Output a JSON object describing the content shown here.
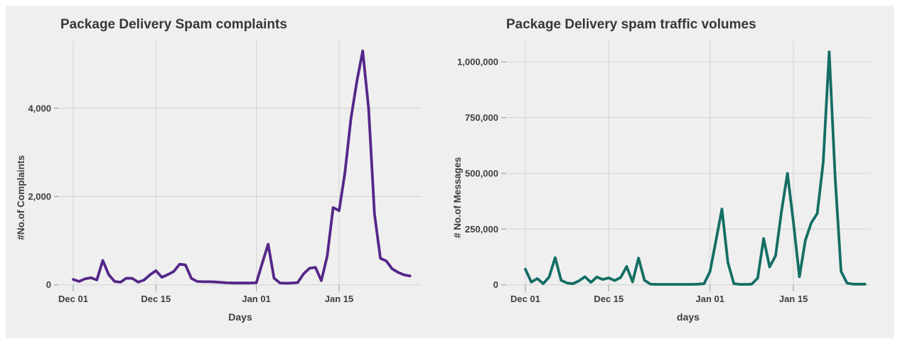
{
  "page": {
    "background_color": "#ffffff",
    "canvas_color": "#efefef",
    "grid_color": "#d2d2d2"
  },
  "chart_data": [
    {
      "type": "line",
      "title": "Package Delivery Spam complaints",
      "xlabel": "Days",
      "ylabel": "#No.of Complaints",
      "series_name": "complaints",
      "line_color": "#542788",
      "grid": true,
      "legend": "none",
      "ylim": [
        0,
        5450
      ],
      "x_ticks": [
        {
          "label": "Dec 01",
          "day": 0
        },
        {
          "label": "Dec 15",
          "day": 14
        },
        {
          "label": "Jan 01",
          "day": 31
        },
        {
          "label": "Jan 15",
          "day": 45
        }
      ],
      "y_ticks": [
        {
          "label": "0",
          "value": 0
        },
        {
          "label": "2,000",
          "value": 2000
        },
        {
          "label": "4,000",
          "value": 4000
        }
      ],
      "x_dates": [
        "Dec 01",
        "Dec 02",
        "Dec 03",
        "Dec 04",
        "Dec 05",
        "Dec 06",
        "Dec 07",
        "Dec 08",
        "Dec 09",
        "Dec 10",
        "Dec 11",
        "Dec 12",
        "Dec 13",
        "Dec 14",
        "Dec 15",
        "Dec 16",
        "Dec 17",
        "Dec 18",
        "Dec 19",
        "Dec 20",
        "Dec 21",
        "Dec 22",
        "Dec 23",
        "Dec 24",
        "Dec 25",
        "Dec 26",
        "Dec 27",
        "Dec 28",
        "Dec 29",
        "Dec 30",
        "Dec 31",
        "Jan 01",
        "Jan 02",
        "Jan 03",
        "Jan 04",
        "Jan 05",
        "Jan 06",
        "Jan 07",
        "Jan 08",
        "Jan 09",
        "Jan 10",
        "Jan 11",
        "Jan 12",
        "Jan 13",
        "Jan 14",
        "Jan 15",
        "Jan 16",
        "Jan 17",
        "Jan 18",
        "Jan 19",
        "Jan 20",
        "Jan 21",
        "Jan 22",
        "Jan 23",
        "Jan 24",
        "Jan 25",
        "Jan 26",
        "Jan 27"
      ],
      "values": [
        120,
        75,
        135,
        160,
        110,
        550,
        230,
        75,
        60,
        150,
        145,
        60,
        110,
        225,
        320,
        170,
        230,
        300,
        465,
        450,
        145,
        75,
        70,
        70,
        65,
        55,
        45,
        40,
        40,
        40,
        40,
        45,
        490,
        920,
        150,
        40,
        35,
        40,
        50,
        250,
        375,
        395,
        95,
        650,
        1750,
        1680,
        2550,
        3760,
        4600,
        5300,
        4000,
        1600,
        600,
        540,
        360,
        280,
        225,
        200
      ]
    },
    {
      "type": "line",
      "title": "Package Delivery spam traffic volumes",
      "xlabel": "days",
      "ylabel": "# No.of Messages",
      "series_name": "messages",
      "line_color": "#146e64",
      "grid": true,
      "legend": "none",
      "ylim": [
        0,
        1060000
      ],
      "x_ticks": [
        {
          "label": "Dec 01",
          "day": 0
        },
        {
          "label": "Dec 15",
          "day": 14
        },
        {
          "label": "Jan 01",
          "day": 31
        },
        {
          "label": "Jan 15",
          "day": 45
        }
      ],
      "y_ticks": [
        {
          "label": "0",
          "value": 0
        },
        {
          "label": "250,000",
          "value": 250000
        },
        {
          "label": "500,000",
          "value": 500000
        },
        {
          "label": "750,000",
          "value": 750000
        },
        {
          "label": "1,000,000",
          "value": 1000000
        }
      ],
      "x_dates": [
        "Dec 01",
        "Dec 02",
        "Dec 03",
        "Dec 04",
        "Dec 05",
        "Dec 06",
        "Dec 07",
        "Dec 08",
        "Dec 09",
        "Dec 10",
        "Dec 11",
        "Dec 12",
        "Dec 13",
        "Dec 14",
        "Dec 15",
        "Dec 16",
        "Dec 17",
        "Dec 18",
        "Dec 19",
        "Dec 20",
        "Dec 21",
        "Dec 22",
        "Dec 23",
        "Dec 24",
        "Dec 25",
        "Dec 26",
        "Dec 27",
        "Dec 28",
        "Dec 29",
        "Dec 30",
        "Dec 31",
        "Jan 01",
        "Jan 02",
        "Jan 03",
        "Jan 04",
        "Jan 05",
        "Jan 06",
        "Jan 07",
        "Jan 08",
        "Jan 09",
        "Jan 10",
        "Jan 11",
        "Jan 12",
        "Jan 13",
        "Jan 14",
        "Jan 15",
        "Jan 16",
        "Jan 17",
        "Jan 18",
        "Jan 19",
        "Jan 20",
        "Jan 21",
        "Jan 22",
        "Jan 23",
        "Jan 24",
        "Jan 25",
        "Jan 26",
        "Jan 27"
      ],
      "values": [
        70000,
        12000,
        28000,
        5000,
        35000,
        122000,
        20000,
        8000,
        5000,
        18000,
        36000,
        11000,
        35000,
        24000,
        31000,
        19000,
        33000,
        82000,
        13000,
        120000,
        20000,
        3000,
        2000,
        2000,
        2000,
        2000,
        2000,
        2000,
        2000,
        3000,
        5000,
        60000,
        200000,
        340000,
        100000,
        5000,
        2000,
        2000,
        3000,
        30000,
        208000,
        80000,
        130000,
        330000,
        500000,
        280000,
        36000,
        200000,
        278000,
        320000,
        550000,
        1045000,
        480000,
        60000,
        8000,
        3000,
        3000,
        3000
      ]
    }
  ]
}
